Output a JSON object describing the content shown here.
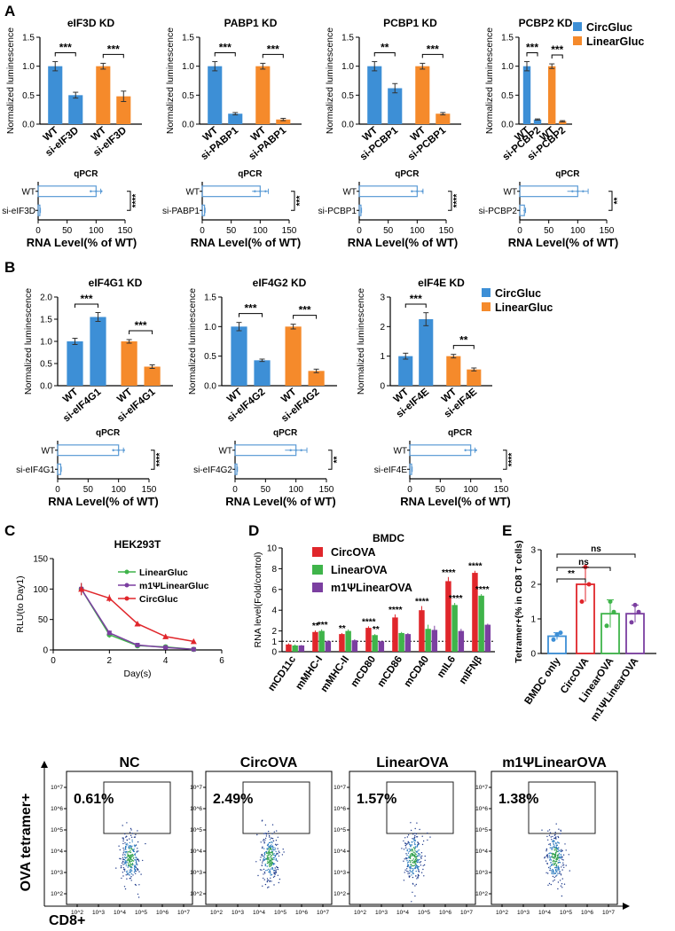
{
  "colors": {
    "circ": "#3d8fd6",
    "linear": "#f58a2b",
    "circ_red": "#e0262b",
    "linear_green": "#3fb44a",
    "m1psi_purple": "#7b3fa0",
    "qpcr_bar": "#5b9bd5",
    "gate": "#222222"
  },
  "panels": {
    "A": "A",
    "B": "B",
    "C": "C",
    "D": "D",
    "E": "E"
  },
  "legend_AB": [
    "CircGluc",
    "LinearGluc"
  ],
  "common": {
    "norm_ylabel": "Normalized luminescence",
    "qpcr_title": "qPCR",
    "rna_xlabel": "RNA Level(% of WT)"
  },
  "chart_data": [
    {
      "id": "eIF3D",
      "type": "bar",
      "title": "eIF3D KD",
      "categories": [
        "WT",
        "si-eIF3D",
        "WT",
        "si-eIF3D"
      ],
      "series": [
        "CircGluc",
        "CircGluc",
        "LinearGluc",
        "LinearGluc"
      ],
      "values": [
        1.0,
        0.5,
        1.0,
        0.48
      ],
      "errors": [
        0.08,
        0.05,
        0.05,
        0.09
      ],
      "ylim": [
        0,
        1.5
      ],
      "yticks": [
        "0.0",
        "0.5",
        "1.0",
        "1.5"
      ],
      "sig": [
        "***",
        "***"
      ],
      "ylabel": "Normalized luminescence"
    },
    {
      "id": "PABP1",
      "type": "bar",
      "title": "PABP1 KD",
      "categories": [
        "WT",
        "si-PABP1",
        "WT",
        "si-PABP1"
      ],
      "series": [
        "CircGluc",
        "CircGluc",
        "LinearGluc",
        "LinearGluc"
      ],
      "values": [
        1.0,
        0.18,
        1.0,
        0.08
      ],
      "errors": [
        0.08,
        0.02,
        0.05,
        0.02
      ],
      "ylim": [
        0,
        1.5
      ],
      "yticks": [
        "0.0",
        "0.5",
        "1.0",
        "1.5"
      ],
      "sig": [
        "***",
        "***"
      ],
      "ylabel": "Normalized luminescence"
    },
    {
      "id": "PCBP1",
      "type": "bar",
      "title": "PCBP1 KD",
      "categories": [
        "WT",
        "si-PCBP1",
        "WT",
        "si-PCBP1"
      ],
      "series": [
        "CircGluc",
        "CircGluc",
        "LinearGluc",
        "LinearGluc"
      ],
      "values": [
        1.0,
        0.62,
        1.0,
        0.18
      ],
      "errors": [
        0.08,
        0.08,
        0.05,
        0.02
      ],
      "ylim": [
        0,
        1.5
      ],
      "yticks": [
        "0.0",
        "0.5",
        "1.0",
        "1.5"
      ],
      "sig": [
        "**",
        "***"
      ],
      "ylabel": "Normalized luminescence"
    },
    {
      "id": "PCBP2",
      "type": "bar",
      "title": "PCBP2 KD",
      "categories": [
        "WT",
        "si-PCBP2",
        "WT",
        "si-PCBP2"
      ],
      "series": [
        "CircGluc",
        "CircGluc",
        "LinearGluc",
        "LinearGluc"
      ],
      "values": [
        1.0,
        0.08,
        1.0,
        0.05
      ],
      "errors": [
        0.08,
        0.01,
        0.04,
        0.01
      ],
      "ylim": [
        0,
        1.5
      ],
      "yticks": [
        "0.0",
        "0.5",
        "1.0",
        "1.5"
      ],
      "sig": [
        "***",
        "***"
      ],
      "ylabel": "Normalized luminescence"
    },
    {
      "id": "q-eIF3D",
      "type": "bar",
      "orientation": "horizontal",
      "title": "qPCR",
      "categories": [
        "WT",
        "si-eIF3D"
      ],
      "values": [
        100,
        3
      ],
      "errors": [
        8,
        1
      ],
      "xlim": [
        0,
        150
      ],
      "xticks": [
        "0",
        "50",
        "100",
        "150"
      ],
      "sig": "****",
      "xlabel": "RNA Level(% of WT)"
    },
    {
      "id": "q-PABP1",
      "type": "bar",
      "orientation": "horizontal",
      "title": "qPCR",
      "categories": [
        "WT",
        "si-PABP1"
      ],
      "values": [
        100,
        4
      ],
      "errors": [
        14,
        1
      ],
      "xlim": [
        0,
        150
      ],
      "xticks": [
        "0",
        "50",
        "100",
        "150"
      ],
      "sig": "***",
      "xlabel": "RNA Level(% of WT)"
    },
    {
      "id": "q-PCBP1",
      "type": "bar",
      "orientation": "horizontal",
      "title": "qPCR",
      "categories": [
        "WT",
        "si-PCBP1"
      ],
      "values": [
        100,
        3
      ],
      "errors": [
        10,
        1
      ],
      "xlim": [
        0,
        150
      ],
      "xticks": [
        "0",
        "50",
        "100",
        "150"
      ],
      "sig": "****",
      "xlabel": "RNA Level(% of WT)"
    },
    {
      "id": "q-PCBP2",
      "type": "bar",
      "orientation": "horizontal",
      "title": "qPCR",
      "categories": [
        "WT",
        "si-PCBP2"
      ],
      "values": [
        100,
        8
      ],
      "errors": [
        18,
        2
      ],
      "xlim": [
        0,
        150
      ],
      "xticks": [
        "0",
        "50",
        "100",
        "150"
      ],
      "sig": "**",
      "xlabel": "RNA Level(% of WT)"
    },
    {
      "id": "eIF4G1",
      "type": "bar",
      "title": "eIF4G1 KD",
      "categories": [
        "WT",
        "si-eIF4G1",
        "WT",
        "si-eIF4G1"
      ],
      "series": [
        "CircGluc",
        "CircGluc",
        "LinearGluc",
        "LinearGluc"
      ],
      "values": [
        1.0,
        1.55,
        1.0,
        0.43
      ],
      "errors": [
        0.07,
        0.1,
        0.04,
        0.04
      ],
      "ylim": [
        0,
        2.0
      ],
      "yticks": [
        "0.0",
        "0.5",
        "1.0",
        "1.5",
        "2.0"
      ],
      "sig": [
        "***",
        "***"
      ],
      "ylabel": "Normalized luminescence"
    },
    {
      "id": "eIF4G2",
      "type": "bar",
      "title": "eIF4G2 KD",
      "categories": [
        "WT",
        "si-eIF4G2",
        "WT",
        "si-eIF4G2"
      ],
      "series": [
        "CircGluc",
        "CircGluc",
        "LinearGluc",
        "LinearGluc"
      ],
      "values": [
        1.0,
        0.43,
        1.0,
        0.25
      ],
      "errors": [
        0.07,
        0.02,
        0.04,
        0.03
      ],
      "ylim": [
        0,
        1.5
      ],
      "yticks": [
        "0.0",
        "0.5",
        "1.0",
        "1.5"
      ],
      "sig": [
        "***",
        "***"
      ],
      "ylabel": "Normalized luminescence"
    },
    {
      "id": "eIF4E",
      "type": "bar",
      "title": "eIF4E KD",
      "categories": [
        "WT",
        "si-eIF4E",
        "WT",
        "si-eIF4E"
      ],
      "series": [
        "CircGluc",
        "CircGluc",
        "LinearGluc",
        "LinearGluc"
      ],
      "values": [
        1.0,
        2.25,
        1.0,
        0.55
      ],
      "errors": [
        0.1,
        0.22,
        0.06,
        0.05
      ],
      "ylim": [
        0,
        3
      ],
      "yticks": [
        "0",
        "1",
        "2",
        "3"
      ],
      "sig": [
        "***",
        "**"
      ],
      "ylabel": "Normalized luminescence"
    },
    {
      "id": "q-eIF4G1",
      "type": "bar",
      "orientation": "horizontal",
      "title": "qPCR",
      "categories": [
        "WT",
        "si-eIF4G1"
      ],
      "values": [
        100,
        5
      ],
      "errors": [
        8,
        1
      ],
      "xlim": [
        0,
        150
      ],
      "xticks": [
        "0",
        "50",
        "100",
        "150"
      ],
      "sig": "****",
      "xlabel": "RNA Level(% of WT)"
    },
    {
      "id": "q-eIF4G2",
      "type": "bar",
      "orientation": "horizontal",
      "title": "qPCR",
      "categories": [
        "WT",
        "si-eIF4G2"
      ],
      "values": [
        100,
        3
      ],
      "errors": [
        18,
        1
      ],
      "xlim": [
        0,
        150
      ],
      "xticks": [
        "0",
        "50",
        "100",
        "150"
      ],
      "sig": "**",
      "xlabel": "RNA Level(% of WT)"
    },
    {
      "id": "q-eIF4E",
      "type": "bar",
      "orientation": "horizontal",
      "title": "qPCR",
      "categories": [
        "WT",
        "si-eIF4E"
      ],
      "values": [
        100,
        3
      ],
      "errors": [
        7,
        1
      ],
      "xlim": [
        0,
        150
      ],
      "xticks": [
        "0",
        "50",
        "100",
        "150"
      ],
      "sig": "****",
      "xlabel": "RNA Level(% of WT)"
    },
    {
      "id": "C",
      "type": "line",
      "title": "HEK293T",
      "x": [
        1,
        2,
        3,
        4,
        5
      ],
      "series": [
        {
          "name": "LinearGluc",
          "values": [
            100,
            25,
            7,
            5,
            1
          ]
        },
        {
          "name": "m1ΨLinearGluc",
          "values": [
            100,
            28,
            8,
            4,
            1
          ]
        },
        {
          "name": "CircGluc",
          "values": [
            100,
            85,
            43,
            22,
            14
          ]
        }
      ],
      "errors": [
        [
          10,
          5,
          2,
          1,
          1
        ],
        [
          10,
          4,
          2,
          1,
          1
        ],
        [
          10,
          6,
          4,
          3,
          3
        ]
      ],
      "xlim": [
        0,
        6
      ],
      "ylim": [
        0,
        150
      ],
      "xticks": [
        "0",
        "2",
        "4",
        "6"
      ],
      "yticks": [
        "0",
        "50",
        "100",
        "150"
      ],
      "xlabel": "Day(s)",
      "ylabel": "RLU(to Day1)"
    },
    {
      "id": "D",
      "type": "bar",
      "title": "BMDC",
      "categories": [
        "mCD11c",
        "mMHC-I",
        "mMHC-II",
        "mCD80",
        "mCD86",
        "mCD40",
        "mIL6",
        "mIFNβ"
      ],
      "series": [
        {
          "name": "CircOVA",
          "values": [
            0.7,
            1.9,
            1.7,
            2.3,
            3.3,
            4.0,
            6.8,
            7.6
          ]
        },
        {
          "name": "LinearOVA",
          "values": [
            0.6,
            2.0,
            2.0,
            1.6,
            1.8,
            2.2,
            4.5,
            5.4
          ]
        },
        {
          "name": "m1ΨLinearOVA",
          "values": [
            0.6,
            1.0,
            1.1,
            1.0,
            1.7,
            2.1,
            2.0,
            2.6
          ]
        }
      ],
      "errors": [
        [
          0.1,
          0.15,
          0.1,
          0.15,
          0.3,
          0.4,
          0.4,
          0.2
        ],
        [
          0.1,
          0.15,
          0.15,
          0.1,
          0.1,
          0.4,
          0.2,
          0.15
        ],
        [
          0.05,
          0.1,
          0.1,
          0.05,
          0.1,
          0.4,
          0.2,
          0.1
        ]
      ],
      "sig": [
        [
          "",
          "",
          "**",
          "***",
          "",
          "**",
          "****",
          "**",
          "",
          "",
          "****",
          "",
          "****",
          "",
          "",
          "****"
        ]
      ],
      "sig_labels": [
        "",
        "**",
        "**",
        "****",
        "****",
        "****",
        "****",
        "****"
      ],
      "sig_labels2": [
        "",
        "***",
        "",
        "**",
        "",
        "",
        "****",
        "****"
      ],
      "ylim": [
        0,
        10
      ],
      "yticks": [
        "0",
        "1",
        "2",
        "4",
        "6",
        "8",
        "10"
      ],
      "ref_line": 1,
      "ylabel": "RNA level(Fold/control)"
    },
    {
      "id": "E",
      "type": "bar",
      "categories": [
        "BMDC only",
        "CircOVA",
        "LinearOVA",
        "m1ΨLinearOVA"
      ],
      "values": [
        0.5,
        2.0,
        1.15,
        1.15
      ],
      "errors": [
        0.1,
        0.5,
        0.4,
        0.25
      ],
      "points": [
        [
          0.4,
          0.55,
          0.6
        ],
        [
          1.5,
          2.5,
          2.0
        ],
        [
          0.8,
          1.5,
          1.2
        ],
        [
          0.9,
          1.4,
          1.2
        ]
      ],
      "ylim": [
        0,
        3
      ],
      "yticks": [
        "0",
        "1",
        "2",
        "3"
      ],
      "sig": [
        "**",
        "ns",
        "ns"
      ],
      "ylabel": "Tetramer+(% in CD8 T cells)"
    },
    {
      "id": "F",
      "type": "scatter",
      "plots": [
        {
          "label": "NC",
          "percent": "0.61%"
        },
        {
          "label": "CircOVA",
          "percent": "2.49%"
        },
        {
          "label": "LinearOVA",
          "percent": "1.57%"
        },
        {
          "label": "m1ΨLinearOVA",
          "percent": "1.38%"
        }
      ],
      "xticks": [
        "10^2",
        "10^3",
        "10^4",
        "10^5",
        "10^6",
        "10^7"
      ],
      "yticks": [
        "10^2",
        "10^3",
        "10^4",
        "10^5",
        "10^6",
        "10^7"
      ],
      "xlabel": "CD8+",
      "ylabel": "OVA tetramer+"
    }
  ]
}
